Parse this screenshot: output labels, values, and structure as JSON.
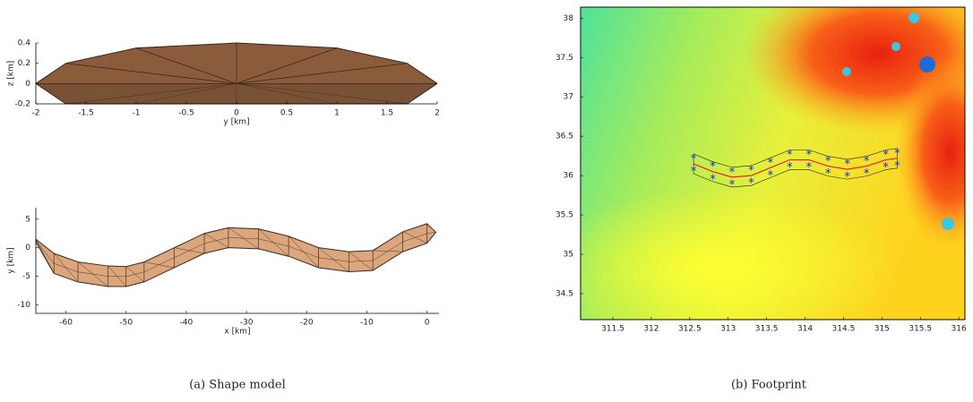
{
  "captions": [
    "(a) Shape model",
    "(b) Footprint"
  ],
  "chart_data": [
    {
      "type": "band",
      "xlabel": "y [km]",
      "ylabel": "z [km]",
      "x": [
        -2,
        -1.7,
        -1,
        0,
        1,
        1.7,
        2
      ],
      "series": [
        {
          "color": "#8a5c3c",
          "values": [
            0,
            0.2,
            0.35,
            0.4,
            0.35,
            0.2,
            0
          ]
        },
        {
          "color": "#6e4a30",
          "values": [
            0,
            -0.2,
            -0.2,
            -0.2,
            -0.2,
            -0.2,
            0
          ]
        }
      ],
      "xlim": [
        -2,
        2
      ],
      "ylim": [
        -0.2,
        0.4
      ],
      "xticks": [
        -2,
        -1.5,
        -1,
        -0.5,
        0,
        0.5,
        1,
        1.5,
        2
      ],
      "yticks": [
        -0.2,
        0,
        0.2,
        0.4
      ]
    },
    {
      "type": "band",
      "xlabel": "x [km]",
      "ylabel": "y [km]",
      "x": [
        -65,
        -62,
        -58,
        -53,
        -50,
        -47,
        -42,
        -37,
        -33,
        -28,
        -23,
        -18,
        -13,
        -9,
        -4,
        0,
        1.5
      ],
      "series": [
        {
          "color": "#dca67c",
          "values": [
            1.5,
            -1,
            -2.5,
            -3.2,
            -3.3,
            -2.5,
            0,
            2.5,
            3.5,
            3.3,
            2,
            0,
            -0.7,
            -0.5,
            2.8,
            4.2,
            2.7
          ]
        },
        {
          "color": "#3a2a20",
          "values": [
            1,
            -4.5,
            -6,
            -6.8,
            -6.8,
            -6,
            -3.5,
            -1,
            0,
            -0.2,
            -1.5,
            -3.5,
            -4.2,
            -4,
            -0.7,
            0.8,
            2.7
          ]
        }
      ],
      "xlim": [
        -65,
        2
      ],
      "ylim": [
        -11.5,
        7
      ],
      "xticks": [
        -60,
        -50,
        -40,
        -30,
        -20,
        -10,
        0
      ],
      "yticks": [
        -10,
        -5,
        0,
        5
      ]
    },
    {
      "type": "scatter",
      "x": [
        312.55,
        312.8,
        313.05,
        313.3,
        313.55,
        313.8,
        314.05,
        314.3,
        314.55,
        314.8,
        315.05,
        315.2
      ],
      "series": [
        {
          "color": "#1a2ad8",
          "marker": "*",
          "values": [
            36.23,
            36.13,
            36.06,
            36.08,
            36.18,
            36.28,
            36.28,
            36.2,
            36.16,
            36.2,
            36.28,
            36.3
          ]
        },
        {
          "color": "#1a2ad8",
          "marker": "*",
          "values": [
            36.07,
            35.97,
            35.9,
            35.92,
            36.02,
            36.12,
            36.12,
            36.04,
            36.0,
            36.04,
            36.12,
            36.14
          ]
        },
        {
          "color": "#e02828",
          "marker": "line",
          "values": [
            36.15,
            36.05,
            35.98,
            36.0,
            36.1,
            36.2,
            36.2,
            36.12,
            36.08,
            36.12,
            36.2,
            36.22
          ]
        }
      ],
      "xlim": [
        311.08,
        316.08
      ],
      "ylim": [
        34.17,
        38.14
      ],
      "xticks": [
        311.5,
        312,
        312.5,
        313,
        313.5,
        314,
        314.5,
        315,
        315.5,
        316
      ],
      "yticks": [
        34.5,
        35,
        35.5,
        36,
        36.5,
        37,
        37.5,
        38
      ]
    }
  ]
}
